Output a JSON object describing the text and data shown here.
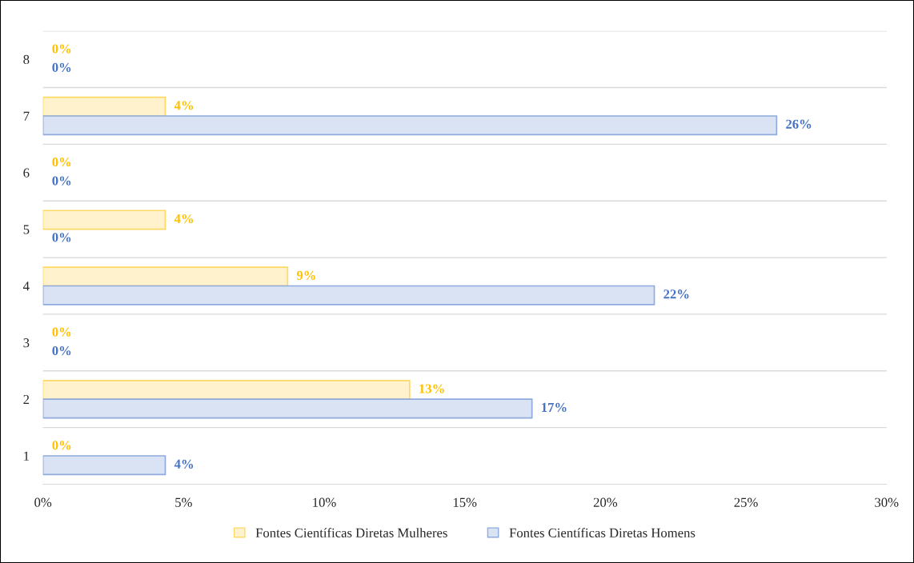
{
  "chart_data": {
    "type": "bar",
    "orientation": "horizontal",
    "categories": [
      "8",
      "7",
      "6",
      "5",
      "4",
      "3",
      "2",
      "1"
    ],
    "series": [
      {
        "name": "Fontes Científicas Diretas Mulheres",
        "color": "#fff2cc",
        "values": [
          0,
          4.35,
          0,
          4.35,
          8.7,
          0,
          13.04,
          0
        ],
        "value_labels": [
          "0%",
          "4%",
          "0%",
          "4%",
          "9%",
          "0%",
          "13%",
          "0%"
        ]
      },
      {
        "name": "Fontes Científicas Diretas Homens",
        "color": "#dae3f3",
        "values": [
          0,
          26.09,
          0,
          0,
          21.74,
          0,
          17.39,
          4.35
        ],
        "value_labels": [
          "0%",
          "26%",
          "0%",
          "0%",
          "22%",
          "0%",
          "17%",
          "4%"
        ]
      }
    ],
    "xlim": [
      0,
      30
    ],
    "xticks": [
      {
        "value": 0,
        "label": "0%"
      },
      {
        "value": 5,
        "label": "5%"
      },
      {
        "value": 10,
        "label": "10%"
      },
      {
        "value": 15,
        "label": "15%"
      },
      {
        "value": 20,
        "label": "20%"
      },
      {
        "value": 25,
        "label": "25%"
      },
      {
        "value": 30,
        "label": "30%"
      }
    ],
    "grid": "y",
    "legend": "bottom"
  }
}
